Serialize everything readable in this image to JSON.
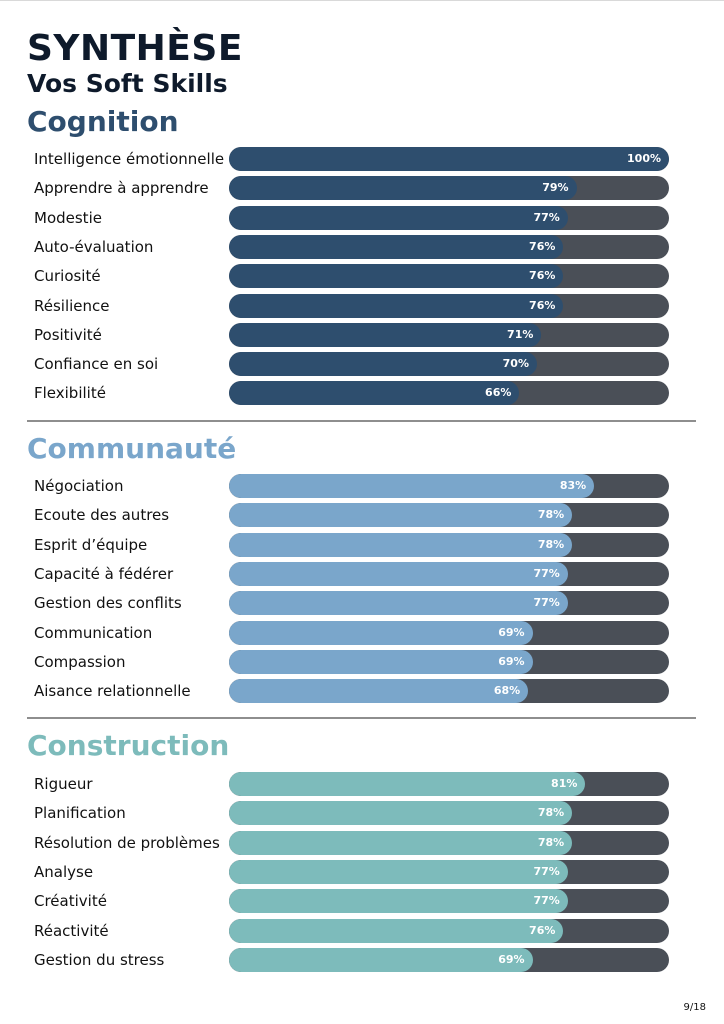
{
  "header": {
    "title": "SYNTHÈSE",
    "subtitle": "Vos Soft Skills"
  },
  "colors": {
    "cognition": "#2e4e6e",
    "communaute": "#7aa6cb",
    "construction": "#7dbbbb",
    "track": "#4a4f57"
  },
  "sections": [
    {
      "key": "cognition",
      "title": "Cognition",
      "items": [
        {
          "label": "Intelligence émotionnelle",
          "value": 100,
          "value_label": "100%"
        },
        {
          "label": "Apprendre à apprendre",
          "value": 79,
          "value_label": "79%"
        },
        {
          "label": "Modestie",
          "value": 77,
          "value_label": "77%"
        },
        {
          "label": "Auto-évaluation",
          "value": 76,
          "value_label": "76%"
        },
        {
          "label": "Curiosité",
          "value": 76,
          "value_label": "76%"
        },
        {
          "label": "Résilience",
          "value": 76,
          "value_label": "76%"
        },
        {
          "label": "Positivité",
          "value": 71,
          "value_label": "71%"
        },
        {
          "label": "Confiance en soi",
          "value": 70,
          "value_label": "70%"
        },
        {
          "label": "Flexibilité",
          "value": 66,
          "value_label": "66%"
        }
      ]
    },
    {
      "key": "communaute",
      "title": "Communauté",
      "items": [
        {
          "label": "Négociation",
          "value": 83,
          "value_label": "83%"
        },
        {
          "label": "Ecoute des autres",
          "value": 78,
          "value_label": "78%"
        },
        {
          "label": "Esprit d’équipe",
          "value": 78,
          "value_label": "78%"
        },
        {
          "label": "Capacité à fédérer",
          "value": 77,
          "value_label": "77%"
        },
        {
          "label": "Gestion des conflits",
          "value": 77,
          "value_label": "77%"
        },
        {
          "label": "Communication",
          "value": 69,
          "value_label": "69%"
        },
        {
          "label": "Compassion",
          "value": 69,
          "value_label": "69%"
        },
        {
          "label": "Aisance relationnelle",
          "value": 68,
          "value_label": "68%"
        }
      ]
    },
    {
      "key": "construction",
      "title": "Construction",
      "items": [
        {
          "label": "Rigueur",
          "value": 81,
          "value_label": "81%"
        },
        {
          "label": "Planification",
          "value": 78,
          "value_label": "78%"
        },
        {
          "label": "Résolution de problèmes",
          "value": 78,
          "value_label": "78%"
        },
        {
          "label": "Analyse",
          "value": 77,
          "value_label": "77%"
        },
        {
          "label": "Créativité",
          "value": 77,
          "value_label": "77%"
        },
        {
          "label": "Réactivité",
          "value": 76,
          "value_label": "76%"
        },
        {
          "label": "Gestion du stress",
          "value": 69,
          "value_label": "69%"
        }
      ]
    }
  ],
  "footer": {
    "page_number": "9/18"
  }
}
